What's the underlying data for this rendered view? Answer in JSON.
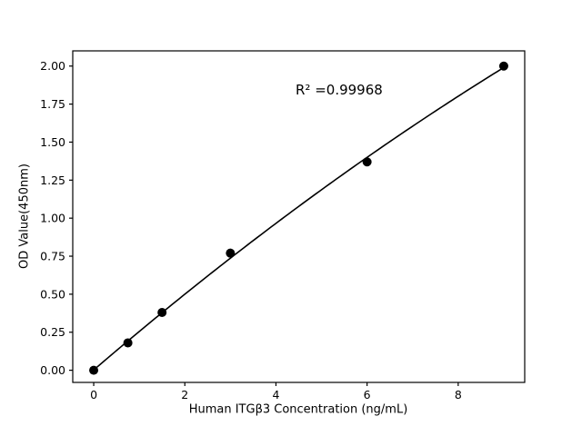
{
  "chart_data": {
    "type": "scatter",
    "x": [
      0,
      0.75,
      1.5,
      3,
      6,
      9
    ],
    "y": [
      0.0,
      0.18,
      0.38,
      0.77,
      1.37,
      2.0
    ],
    "fit": "quadratic",
    "annotation": "R² =0.99968",
    "xlabel": "Human ITGβ3 Concentration (ng/mL)",
    "ylabel": "OD Value(450nm)",
    "xticks": [
      0,
      2,
      4,
      6,
      8
    ],
    "yticks": [
      0.0,
      0.25,
      0.5,
      0.75,
      1.0,
      1.25,
      1.5,
      1.75,
      2.0
    ],
    "xlim": [
      -0.46,
      9.46
    ],
    "ylim": [
      -0.08,
      2.1
    ],
    "grid": false,
    "legend": "none",
    "marker_color": "#000000",
    "line_color": "#000000",
    "background": "#ffffff"
  }
}
